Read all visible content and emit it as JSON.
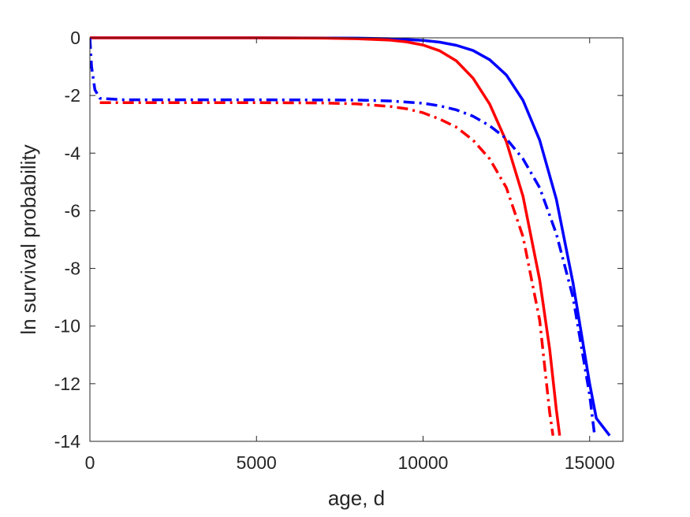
{
  "chart_data": {
    "type": "line",
    "title": "",
    "xlabel": "age, d",
    "ylabel": "ln survival probability",
    "xlim": [
      0,
      16000
    ],
    "ylim": [
      -14,
      0
    ],
    "xticks": [
      0,
      5000,
      10000,
      15000
    ],
    "yticks": [
      0,
      -2,
      -4,
      -6,
      -8,
      -10,
      -12,
      -14
    ],
    "xtick_labels": [
      "0",
      "5000",
      "10000",
      "15000"
    ],
    "ytick_labels": [
      "0",
      "-2",
      "-4",
      "-6",
      "-8",
      "-10",
      "-12",
      "-14"
    ],
    "grid": false,
    "legend": null,
    "colors": {
      "red": "#ff0000",
      "blue": "#0000ff",
      "axis": "#262626"
    },
    "series": [
      {
        "color": "#0000ff",
        "style": "solid",
        "points": [
          [
            0,
            0
          ],
          [
            2000,
            0
          ],
          [
            5000,
            0
          ],
          [
            8000,
            -0.01
          ],
          [
            9000,
            -0.03
          ],
          [
            10000,
            -0.09
          ],
          [
            10500,
            -0.15
          ],
          [
            11000,
            -0.26
          ],
          [
            11500,
            -0.44
          ],
          [
            12000,
            -0.76
          ],
          [
            12500,
            -1.29
          ],
          [
            13000,
            -2.17
          ],
          [
            13500,
            -3.55
          ],
          [
            14000,
            -5.6
          ],
          [
            14500,
            -8.5
          ],
          [
            15000,
            -12.0
          ],
          [
            15200,
            -13.2
          ],
          [
            15600,
            -13.8
          ]
        ]
      },
      {
        "color": "#ff0000",
        "style": "solid",
        "points": [
          [
            0,
            0
          ],
          [
            2000,
            0
          ],
          [
            5000,
            0
          ],
          [
            7000,
            -0.01
          ],
          [
            8000,
            -0.03
          ],
          [
            9000,
            -0.08
          ],
          [
            9500,
            -0.14
          ],
          [
            10000,
            -0.25
          ],
          [
            10500,
            -0.45
          ],
          [
            11000,
            -0.8
          ],
          [
            11500,
            -1.4
          ],
          [
            12000,
            -2.3
          ],
          [
            12500,
            -3.6
          ],
          [
            13000,
            -5.5
          ],
          [
            13500,
            -8.4
          ],
          [
            13800,
            -10.8
          ],
          [
            14000,
            -12.9
          ],
          [
            14100,
            -13.8
          ]
        ]
      },
      {
        "color": "#0000ff",
        "style": "dashdot",
        "points": [
          [
            0,
            0
          ],
          [
            50,
            -1.0
          ],
          [
            150,
            -1.8
          ],
          [
            300,
            -2.1
          ],
          [
            1000,
            -2.15
          ],
          [
            5000,
            -2.15
          ],
          [
            8000,
            -2.16
          ],
          [
            9000,
            -2.19
          ],
          [
            10000,
            -2.27
          ],
          [
            10500,
            -2.36
          ],
          [
            11000,
            -2.5
          ],
          [
            11500,
            -2.72
          ],
          [
            12000,
            -3.05
          ],
          [
            12500,
            -3.5
          ],
          [
            13000,
            -4.2
          ],
          [
            13500,
            -5.2
          ],
          [
            14000,
            -6.8
          ],
          [
            14500,
            -9.0
          ],
          [
            15000,
            -12.4
          ],
          [
            15150,
            -13.8
          ]
        ]
      },
      {
        "color": "#ff0000",
        "style": "dashdot",
        "points": [
          [
            300,
            -2.25
          ],
          [
            1000,
            -2.25
          ],
          [
            5000,
            -2.25
          ],
          [
            7000,
            -2.26
          ],
          [
            8000,
            -2.29
          ],
          [
            9000,
            -2.38
          ],
          [
            9500,
            -2.46
          ],
          [
            10000,
            -2.6
          ],
          [
            10500,
            -2.82
          ],
          [
            11000,
            -3.1
          ],
          [
            11500,
            -3.55
          ],
          [
            12000,
            -4.2
          ],
          [
            12500,
            -5.2
          ],
          [
            13000,
            -6.9
          ],
          [
            13500,
            -9.8
          ],
          [
            13800,
            -13.0
          ],
          [
            13900,
            -13.8
          ]
        ]
      }
    ]
  }
}
